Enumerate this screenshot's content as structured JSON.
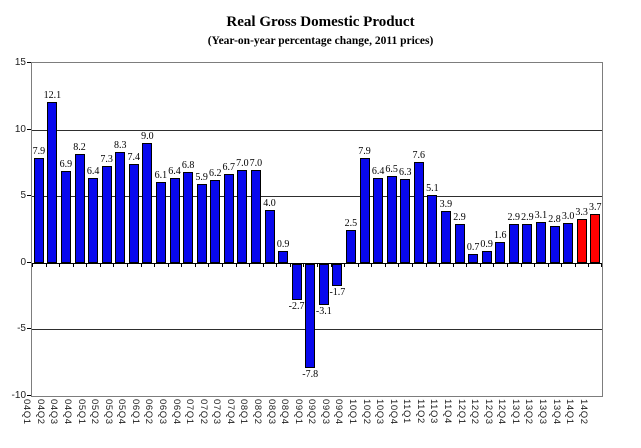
{
  "chart_data": {
    "type": "bar",
    "title": "Real Gross Domestic Product",
    "subtitle": "(Year-on-year percentage change, 2011 prices)",
    "categories": [
      "04Q1",
      "04Q2",
      "04Q3",
      "04Q4",
      "05Q1",
      "05Q2",
      "05Q3",
      "05Q4",
      "06Q1",
      "06Q2",
      "06Q3",
      "06Q4",
      "07Q1",
      "07Q2",
      "07Q3",
      "07Q4",
      "08Q1",
      "08Q2",
      "08Q3",
      "08Q4",
      "09Q1",
      "09Q2",
      "09Q3",
      "09Q4",
      "10Q1",
      "10Q2",
      "10Q3",
      "10Q4",
      "11Q1",
      "11Q2",
      "11Q3",
      "11Q4",
      "12Q1",
      "12Q2",
      "12Q3",
      "12Q4",
      "13Q1",
      "13Q2",
      "13Q3",
      "13Q4",
      "14Q1",
      "14Q2"
    ],
    "values": [
      7.9,
      12.1,
      6.9,
      8.2,
      6.4,
      7.3,
      8.3,
      7.4,
      9.0,
      6.1,
      6.4,
      6.8,
      5.9,
      6.2,
      6.7,
      7.0,
      7.0,
      4.0,
      0.9,
      -2.7,
      -7.8,
      -3.1,
      -1.7,
      2.5,
      7.9,
      6.4,
      6.5,
      6.3,
      7.6,
      5.1,
      3.9,
      2.9,
      0.7,
      0.9,
      1.6,
      2.9,
      2.9,
      3.1,
      2.8,
      3.0,
      3.3,
      3.7
    ],
    "bar_color_default": "#0808EE",
    "bar_color_highlight": "#FF0000",
    "highlight_indices": [
      40,
      41
    ],
    "ylim": [
      -10,
      15
    ],
    "yticks": [
      15,
      10,
      5,
      0,
      -5,
      -10
    ],
    "gridline_values": [
      10,
      5,
      -5
    ],
    "grid": "horizontal",
    "legend_position": "none",
    "xlabel": "",
    "ylabel": ""
  }
}
